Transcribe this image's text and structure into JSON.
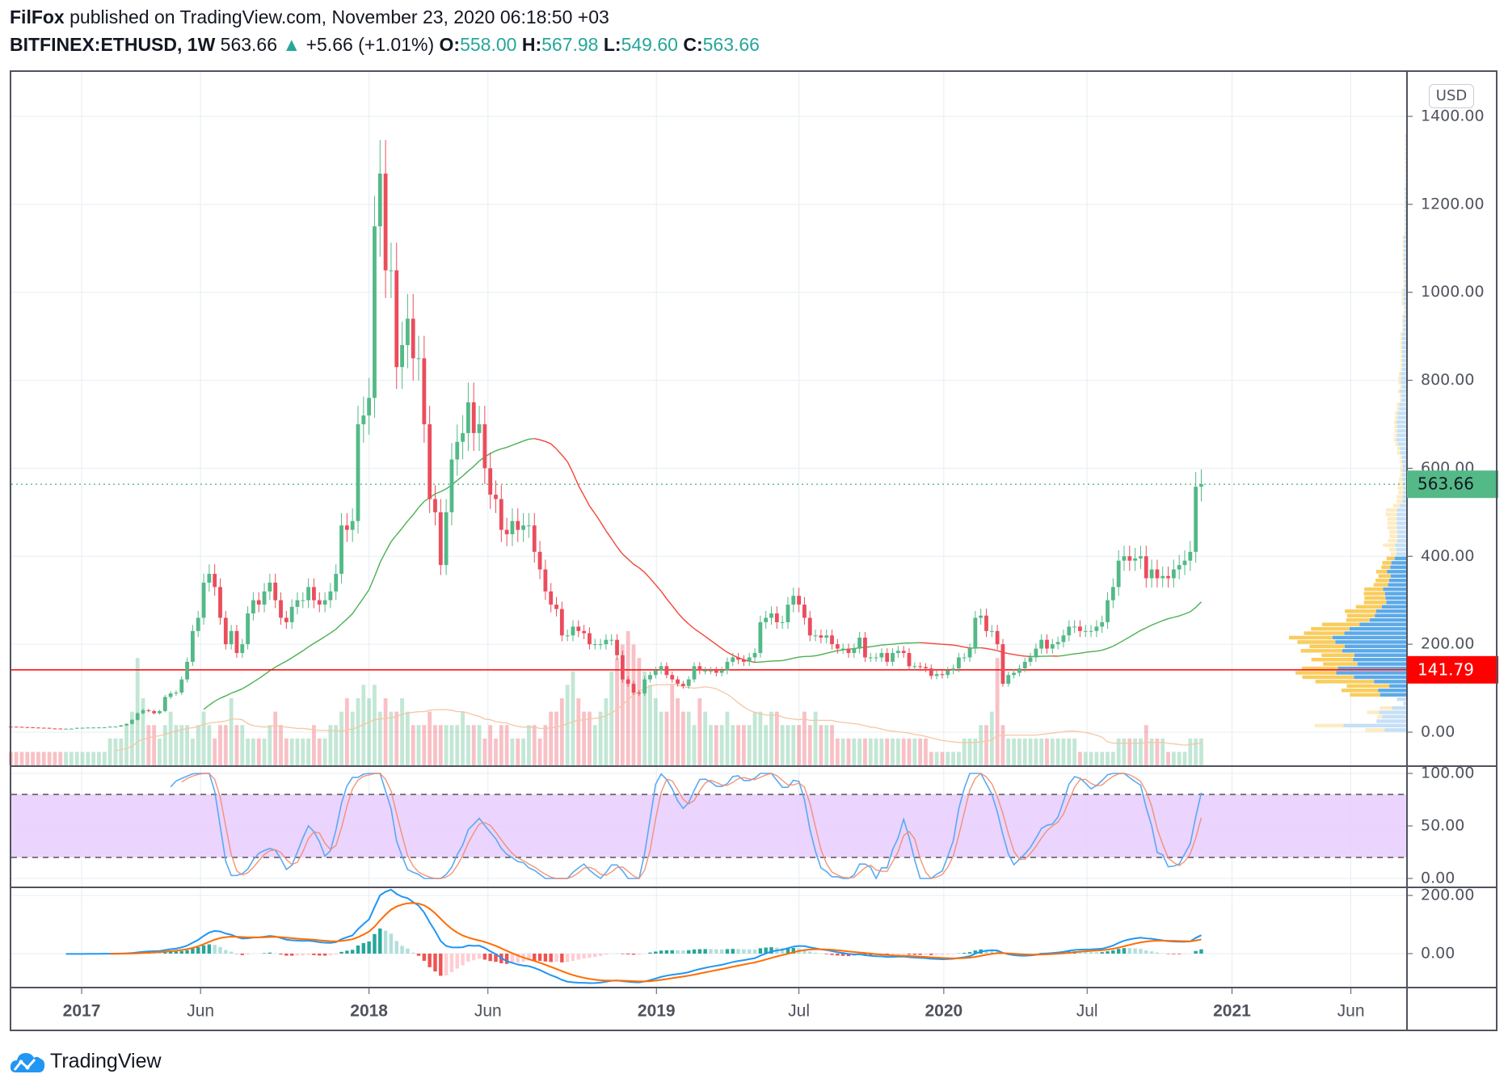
{
  "header": {
    "author": "FilFox",
    "published_text": "published on TradingView.com, November 23, 2020 06:18:50 +03",
    "symbol": "BITFINEX:ETHUSD, 1W",
    "last": "563.66",
    "change": "+5.66 (+1.01%)",
    "o_label": "O:",
    "o": "558.00",
    "h_label": "H:",
    "h": "567.98",
    "l_label": "L:",
    "l": "549.60",
    "c_label": "C:",
    "c": "563.66"
  },
  "currency_button": "USD",
  "logo_text": "TradingView",
  "colors": {
    "up": "#53b987",
    "down": "#eb4d5c",
    "level": "#ff0000",
    "macd": "#2196f3",
    "signal": "#ff6d00",
    "stoch_k": "#5aa9f5",
    "stoch_d": "#f28a6a",
    "band": "#e9cffd"
  },
  "chart_data": {
    "type": "candlestick",
    "interval": "1W",
    "start_week": "2016-10-03",
    "close": [
      12.5,
      12,
      11.5,
      11,
      10.5,
      10,
      9.8,
      8.5,
      8.2,
      7.8,
      7.9,
      8.0,
      9.8,
      10,
      10.5,
      10.6,
      10.8,
      11,
      12.7,
      12.8,
      15.5,
      19,
      28,
      43,
      50,
      48,
      43,
      48,
      80,
      88,
      90,
      120,
      160,
      230,
      260,
      340,
      360,
      330,
      260,
      200,
      230,
      180,
      200,
      270,
      300,
      290,
      320,
      340,
      300,
      260,
      250,
      285,
      300,
      300,
      330,
      300,
      290,
      300,
      320,
      360,
      470,
      460,
      480,
      700,
      720,
      760,
      1150,
      1270,
      1050,
      1050,
      830,
      880,
      940,
      850,
      850,
      700,
      530,
      500,
      380,
      500,
      620,
      660,
      680,
      750,
      680,
      700,
      600,
      540,
      530,
      460,
      450,
      480,
      460,
      470,
      470,
      410,
      370,
      320,
      290,
      280,
      220,
      220,
      240,
      230,
      225,
      200,
      200,
      200,
      210,
      210,
      175,
      120,
      110,
      90,
      88,
      120,
      130,
      140,
      150,
      130,
      120,
      110,
      105,
      120,
      150,
      140,
      140,
      140,
      135,
      140,
      160,
      170,
      165,
      160,
      170,
      180,
      250,
      260,
      270,
      250,
      250,
      290,
      310,
      290,
      260,
      220,
      220,
      215,
      220,
      200,
      190,
      190,
      180,
      190,
      215,
      170,
      170,
      170,
      180,
      160,
      180,
      185,
      180,
      150,
      150,
      148,
      145,
      128,
      132,
      130,
      140,
      145,
      170,
      170,
      190,
      260,
      265,
      230,
      230,
      200,
      110,
      130,
      135,
      145,
      160,
      170,
      190,
      210,
      190,
      200,
      205,
      220,
      240,
      240,
      230,
      230,
      230,
      240,
      250,
      300,
      330,
      390,
      400,
      390,
      395,
      400,
      350,
      370,
      350,
      355,
      350,
      370,
      380,
      390,
      410,
      558,
      563.66
    ],
    "volume": [
      1,
      1,
      1,
      1,
      1,
      1,
      1,
      1,
      1,
      1,
      1,
      1,
      1,
      1,
      1,
      1,
      1,
      1,
      2,
      2,
      2,
      3,
      4,
      8,
      5,
      3,
      3,
      2,
      3,
      4,
      3,
      3,
      3,
      2,
      3,
      4,
      3,
      2,
      3,
      3,
      5,
      3,
      3,
      2,
      2,
      2,
      2,
      3,
      4,
      3,
      2,
      2,
      2,
      2,
      2,
      3,
      2,
      2,
      3,
      3,
      4,
      5,
      4,
      5,
      6,
      5,
      6,
      4,
      5,
      4,
      4,
      5,
      4,
      3,
      3,
      3,
      4,
      3,
      3,
      3,
      3,
      3,
      4,
      3,
      3,
      3,
      2,
      3,
      2,
      3,
      3,
      2,
      2,
      2,
      3,
      3,
      2,
      3,
      4,
      4,
      5,
      6,
      7,
      5,
      4,
      4,
      3,
      4,
      5,
      7,
      8,
      9,
      10,
      9,
      8,
      7,
      6,
      5,
      4,
      4,
      6,
      5,
      4,
      4,
      3,
      5,
      4,
      3,
      3,
      3,
      4,
      3,
      3,
      3,
      3,
      4,
      4,
      3,
      4,
      4,
      3,
      3,
      3,
      3,
      4,
      3,
      4,
      3,
      3,
      3,
      2,
      2,
      2,
      2,
      2,
      2,
      2,
      2,
      2,
      2,
      2,
      2,
      2,
      2,
      2,
      2,
      2,
      1,
      1,
      1,
      1,
      1,
      1,
      2,
      2,
      2,
      3,
      3,
      4,
      8,
      3,
      2,
      2,
      2,
      2,
      2,
      2,
      2,
      2,
      2,
      2,
      2,
      2,
      2,
      1,
      1,
      1,
      1,
      1,
      1,
      1,
      2,
      2,
      2,
      2,
      2,
      3,
      2,
      2,
      2,
      1,
      1,
      1,
      1,
      2,
      2,
      2
    ],
    "price_axis": {
      "ticks": [
        "0.00",
        "200.00",
        "400.00",
        "600.00",
        "800.00",
        "1000.00",
        "1200.00",
        "1400.00"
      ],
      "range": [
        0,
        1400
      ]
    },
    "last_price_label": "563.66",
    "level_line": {
      "value": 141.79,
      "label": "141.79"
    },
    "stoch_axis": {
      "ticks": [
        "0.00",
        "50.00",
        "100.00"
      ],
      "bands": [
        20,
        80
      ]
    },
    "macd_axis": {
      "ticks": [
        "0.00",
        "200.00"
      ]
    },
    "time_ticks": [
      {
        "label": "2017",
        "date": "2017-01-01",
        "bold": true
      },
      {
        "label": "Jun",
        "date": "2017-06-01"
      },
      {
        "label": "2018",
        "date": "2018-01-01",
        "bold": true
      },
      {
        "label": "Jun",
        "date": "2018-06-01"
      },
      {
        "label": "2019",
        "date": "2019-01-01",
        "bold": true
      },
      {
        "label": "Jul",
        "date": "2019-07-01"
      },
      {
        "label": "2020",
        "date": "2020-01-01",
        "bold": true
      },
      {
        "label": "Jul",
        "date": "2020-07-01"
      },
      {
        "label": "2021",
        "date": "2021-01-01",
        "bold": true
      },
      {
        "label": "Jun",
        "date": "2021-06-01"
      }
    ],
    "grid": true
  }
}
